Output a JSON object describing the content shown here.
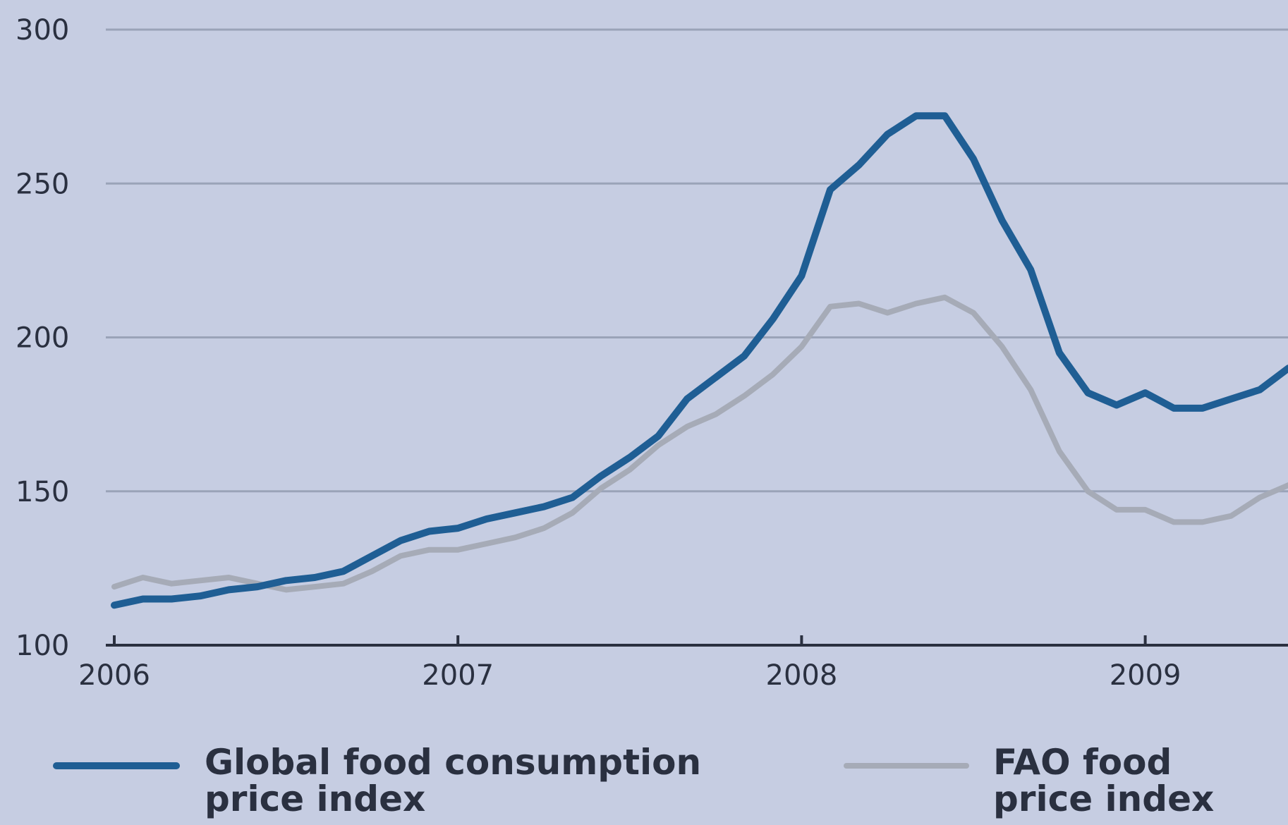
{
  "colors": {
    "background": "#c6cde2",
    "gridline": "#9aa3b8",
    "axis": "#2a3040",
    "tick_text": "#2a3040",
    "legend_text": "#2a3040"
  },
  "chart_data": {
    "type": "line",
    "title": "",
    "xlabel": "",
    "ylabel": "",
    "xlim": [
      "2006-01",
      "2009-06"
    ],
    "ylim": [
      100,
      300
    ],
    "y_ticks": [
      "100",
      "150",
      "200",
      "250",
      "300"
    ],
    "x_ticks": [
      {
        "label": "2006",
        "at": "2006-01"
      },
      {
        "label": "2007",
        "at": "2007-01"
      },
      {
        "label": "2008",
        "at": "2008-01"
      },
      {
        "label": "2009",
        "at": "2009-01"
      }
    ],
    "grid": true,
    "legend_position": "bottom",
    "x": [
      "2006-01",
      "2006-02",
      "2006-03",
      "2006-04",
      "2006-05",
      "2006-06",
      "2006-07",
      "2006-08",
      "2006-09",
      "2006-10",
      "2006-11",
      "2006-12",
      "2007-01",
      "2007-02",
      "2007-03",
      "2007-04",
      "2007-05",
      "2007-06",
      "2007-07",
      "2007-08",
      "2007-09",
      "2007-10",
      "2007-11",
      "2007-12",
      "2008-01",
      "2008-02",
      "2008-03",
      "2008-04",
      "2008-05",
      "2008-06",
      "2008-07",
      "2008-08",
      "2008-09",
      "2008-10",
      "2008-11",
      "2008-12",
      "2009-01",
      "2009-02",
      "2009-03",
      "2009-04",
      "2009-05",
      "2009-06"
    ],
    "series": [
      {
        "name_lines": [
          "Global food consumption",
          "price index"
        ],
        "color": "#1f5e94",
        "values": [
          113,
          115,
          115,
          116,
          118,
          119,
          121,
          122,
          124,
          129,
          134,
          137,
          138,
          141,
          143,
          145,
          148,
          155,
          161,
          168,
          180,
          187,
          194,
          206,
          220,
          248,
          256,
          266,
          272,
          272,
          258,
          238,
          222,
          195,
          182,
          178,
          182,
          177,
          177,
          180,
          183,
          190
        ]
      },
      {
        "name_lines": [
          "FAO food",
          "price index"
        ],
        "color": "#a6abb7",
        "values": [
          119,
          122,
          120,
          121,
          122,
          120,
          118,
          119,
          120,
          124,
          129,
          131,
          131,
          133,
          135,
          138,
          143,
          151,
          157,
          165,
          171,
          175,
          181,
          188,
          197,
          210,
          211,
          208,
          211,
          213,
          208,
          197,
          183,
          163,
          150,
          144,
          144,
          140,
          140,
          142,
          148,
          152
        ]
      }
    ]
  }
}
